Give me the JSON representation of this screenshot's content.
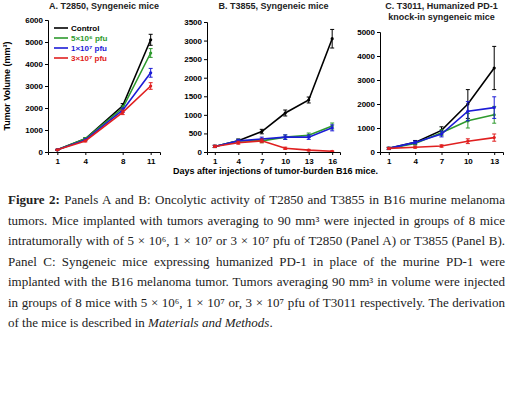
{
  "chart_data": [
    {
      "type": "line",
      "title": "A. T2850, Syngeneic mice",
      "y_label": "Tumor Volume (mm³)",
      "x": [
        1,
        4,
        8,
        11
      ],
      "xlim": [
        0,
        12
      ],
      "xticks": [
        1,
        4,
        8,
        11
      ],
      "ylim": [
        0,
        6000
      ],
      "yticks": [
        0,
        1000,
        2000,
        3000,
        4000,
        5000,
        6000
      ],
      "legend": "upper left",
      "series": [
        {
          "name": "Control",
          "color": "#000000",
          "values": [
            100,
            600,
            2100,
            5100
          ],
          "errors": [
            20,
            50,
            100,
            250
          ]
        },
        {
          "name": "5×10⁶ pfu",
          "color": "#2e9a2e",
          "values": [
            100,
            600,
            2000,
            4500
          ],
          "errors": [
            20,
            50,
            100,
            200
          ]
        },
        {
          "name": "1×10⁷ pfu",
          "color": "#1c1cd6",
          "values": [
            100,
            550,
            1900,
            3600
          ],
          "errors": [
            20,
            40,
            100,
            200
          ]
        },
        {
          "name": "3×10⁷ pfu",
          "color": "#e02020",
          "values": [
            100,
            500,
            1800,
            3000
          ],
          "errors": [
            20,
            40,
            100,
            150
          ]
        }
      ]
    },
    {
      "type": "line",
      "title": "B. T3855, Syngeneic mice",
      "x_label": "Days after injections of tumor-burden B16 mice.",
      "x": [
        1,
        4,
        7,
        10,
        13,
        16
      ],
      "xlim": [
        0,
        17
      ],
      "xticks": [
        1,
        4,
        7,
        10,
        13,
        16
      ],
      "ylim": [
        0,
        3500
      ],
      "yticks": [
        0,
        500,
        1000,
        1500,
        2000,
        2500,
        3000,
        3500
      ],
      "series": [
        {
          "color": "#000000",
          "values": [
            150,
            300,
            550,
            1050,
            1400,
            3050
          ],
          "errors": [
            30,
            50,
            60,
            80,
            80,
            250
          ]
        },
        {
          "color": "#2e9a2e",
          "values": [
            150,
            300,
            300,
            400,
            450,
            700
          ],
          "errors": [
            30,
            40,
            50,
            60,
            60,
            80
          ]
        },
        {
          "color": "#1c1cd6",
          "values": [
            150,
            300,
            350,
            400,
            400,
            650
          ],
          "errors": [
            30,
            40,
            50,
            60,
            60,
            80
          ]
        },
        {
          "color": "#e02020",
          "values": [
            150,
            250,
            300,
            100,
            50,
            20
          ],
          "errors": [
            30,
            40,
            50,
            30,
            20,
            10
          ]
        }
      ]
    },
    {
      "type": "line",
      "title": "C. T3011, Humanized PD-1\nknock-in syngeneic mice",
      "x": [
        1,
        4,
        7,
        10,
        13
      ],
      "xlim": [
        0,
        14
      ],
      "xticks": [
        1,
        4,
        7,
        10,
        13
      ],
      "ylim": [
        0,
        5000
      ],
      "yticks": [
        0,
        1000,
        2000,
        3000,
        4000,
        5000
      ],
      "series": [
        {
          "color": "#000000",
          "values": [
            150,
            400,
            900,
            2000,
            3500
          ],
          "errors": [
            50,
            80,
            150,
            600,
            900
          ]
        },
        {
          "color": "#2e9a2e",
          "values": [
            150,
            350,
            800,
            1300,
            1550
          ],
          "errors": [
            40,
            60,
            120,
            300,
            350
          ]
        },
        {
          "color": "#1c1cd6",
          "values": [
            150,
            400,
            750,
            1700,
            1850
          ],
          "errors": [
            40,
            60,
            120,
            400,
            450
          ]
        },
        {
          "color": "#e02020",
          "values": [
            150,
            200,
            250,
            450,
            600
          ],
          "errors": [
            30,
            40,
            50,
            100,
            150
          ]
        }
      ]
    }
  ],
  "caption": {
    "label": "Figure 2:",
    "text": "Panels A and B: Oncolytic activity of T2850 and T3855 in B16 murine melanoma tumors. Mice implanted with tumors averaging to 90 mm³ were injected in groups of 8 mice intratumorally with of 5 × 10⁶, 1 × 10⁷ or 3 × 10⁷ pfu of T2850 (Panel A) or T3855 (Panel B). Panel C: Syngeneic mice expressing humanized PD-1 in place of the murine PD-1 were implanted with the B16 melanoma tumor. Tumors averaging 90 mm³ in volume were injected in groups of 8 mice with 5 × 10⁶, 1 × 10⁷ or, 3 × 10⁷ pfu of T3011 respectively. The derivation of the mice is described in ",
    "emphasis": "Materials and Methods",
    "end": "."
  }
}
